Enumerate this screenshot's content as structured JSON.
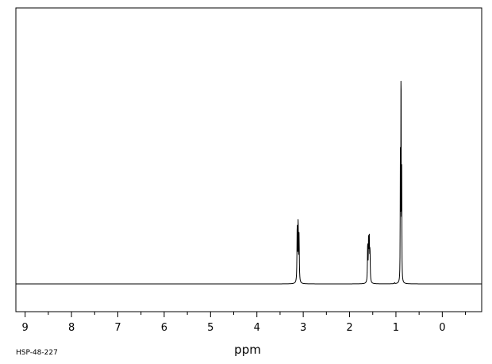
{
  "chart_data": {
    "type": "line",
    "title": "",
    "xlabel": "ppm",
    "ylabel": "",
    "x_axis_reversed": true,
    "xlim": [
      9.2,
      -0.85
    ],
    "ylim": [
      0,
      1
    ],
    "tick_labels": [
      "9",
      "8",
      "7",
      "6",
      "5",
      "4",
      "3",
      "2",
      "1",
      "0"
    ],
    "tick_values": [
      9,
      8,
      7,
      6,
      5,
      4,
      3,
      2,
      1,
      0
    ],
    "minor_tick_step": 0.5,
    "grid": false,
    "legend": "none",
    "sample_id": "HSP-48-227",
    "series": [
      {
        "peaks": [
          {
            "shift": 3.13,
            "height": 0.225
          },
          {
            "shift": 3.11,
            "height": 0.233
          },
          {
            "shift": 3.09,
            "height": 0.18
          },
          {
            "shift": 1.61,
            "height": 0.15
          },
          {
            "shift": 1.59,
            "height": 0.163
          },
          {
            "shift": 1.575,
            "height": 0.155
          },
          {
            "shift": 1.56,
            "height": 0.12
          },
          {
            "shift": 1.03,
            "height": 0.004
          },
          {
            "shift": 0.905,
            "height": 0.488
          },
          {
            "shift": 0.89,
            "height": 1.0
          },
          {
            "shift": 0.875,
            "height": 0.415
          }
        ]
      }
    ],
    "colors": {
      "line": "#000000",
      "background": "#ffffff"
    }
  }
}
